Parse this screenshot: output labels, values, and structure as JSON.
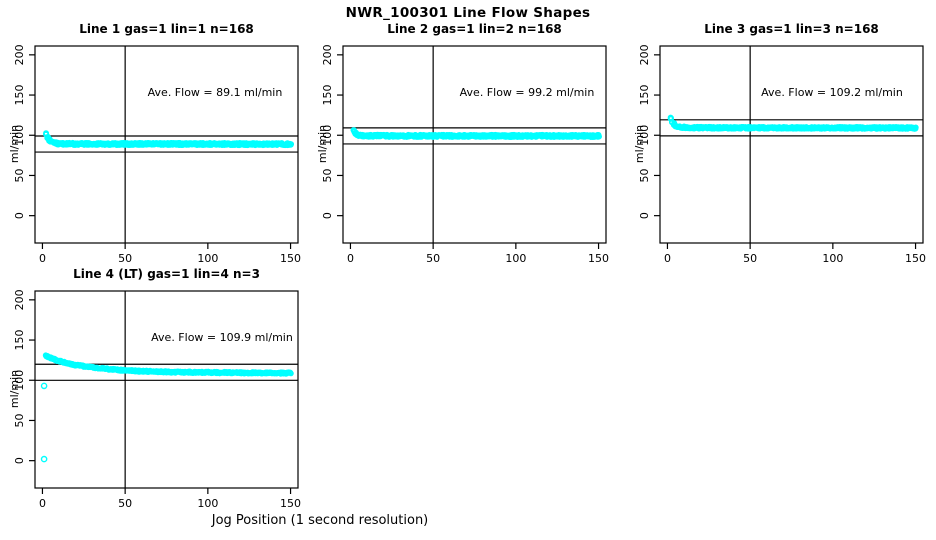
{
  "page": {
    "title": "NWR_100301  Line Flow Shapes",
    "x_axis_label": "Jog Position (1 second resolution)"
  },
  "colors": {
    "point": "#00ffff",
    "line": "#000000",
    "background": "#ffffff",
    "text": "#000000"
  },
  "chart_data": [
    {
      "type": "scatter",
      "title": "Line 1 gas=1 lin=1 n=168",
      "annotation": "Ave. Flow =  89.1  ml/min",
      "ave_flow_ml_min": 89.1,
      "n_jogs": 168,
      "ylabel": "ml/min",
      "x_ticks": [
        0,
        50,
        100,
        150
      ],
      "y_ticks": [
        0,
        50,
        100,
        150,
        200
      ],
      "x_range": [
        -4.5,
        154.5
      ],
      "y_range": [
        -34,
        211
      ],
      "ref_vline_x": 50,
      "ref_hlines": [
        99.1,
        79.1
      ],
      "x_span": [
        2,
        150
      ],
      "traces": 4,
      "band_halfwidth": 1.4,
      "series_profile": [
        [
          2,
          101.5
        ],
        [
          3,
          97.5
        ],
        [
          4,
          94.5
        ],
        [
          5,
          92.5
        ],
        [
          6,
          91.0
        ],
        [
          8,
          90.0
        ],
        [
          10,
          89.6
        ],
        [
          15,
          89.3
        ],
        [
          30,
          89.2
        ],
        [
          150,
          89.0
        ]
      ],
      "outliers": []
    },
    {
      "type": "scatter",
      "title": "Line 2 gas=1 lin=2 n=168",
      "annotation": "Ave. Flow =  99.2  ml/min",
      "ave_flow_ml_min": 99.2,
      "n_jogs": 168,
      "ylabel": "ml/min",
      "x_ticks": [
        0,
        50,
        100,
        150
      ],
      "y_ticks": [
        0,
        50,
        100,
        150,
        200
      ],
      "x_range": [
        -4.5,
        154.5
      ],
      "y_range": [
        -34,
        211
      ],
      "ref_vline_x": 50,
      "ref_hlines": [
        109.2,
        89.2
      ],
      "x_span": [
        2,
        150
      ],
      "traces": 4,
      "band_halfwidth": 1.4,
      "series_profile": [
        [
          2,
          105.0
        ],
        [
          3,
          102.5
        ],
        [
          4,
          101.0
        ],
        [
          5,
          100.3
        ],
        [
          6,
          99.9
        ],
        [
          8,
          99.6
        ],
        [
          10,
          99.4
        ],
        [
          15,
          99.3
        ],
        [
          30,
          99.2
        ],
        [
          150,
          99.1
        ]
      ],
      "outliers": []
    },
    {
      "type": "scatter",
      "title": "Line 3 gas=1 lin=3 n=168",
      "annotation": "Ave. Flow =  109.2  ml/min",
      "ave_flow_ml_min": 109.2,
      "n_jogs": 168,
      "ylabel": "ml/min",
      "x_ticks": [
        0,
        50,
        100,
        150
      ],
      "y_ticks": [
        0,
        50,
        100,
        150,
        200
      ],
      "x_range": [
        -4.5,
        154.5
      ],
      "y_range": [
        -34,
        211
      ],
      "ref_vline_x": 50,
      "ref_hlines": [
        119.2,
        99.2
      ],
      "x_span": [
        2,
        150
      ],
      "traces": 4,
      "band_halfwidth": 1.2,
      "series_profile": [
        [
          2,
          121.5
        ],
        [
          3,
          117.0
        ],
        [
          4,
          114.0
        ],
        [
          5,
          112.0
        ],
        [
          6,
          111.0
        ],
        [
          8,
          110.3
        ],
        [
          10,
          109.9
        ],
        [
          15,
          109.5
        ],
        [
          30,
          109.3
        ],
        [
          150,
          109.1
        ]
      ],
      "outliers": []
    },
    {
      "type": "scatter",
      "title": "Line 4 (LT) gas=1 lin=4 n=3",
      "annotation": "Ave. Flow =  109.9  ml/min",
      "ave_flow_ml_min": 109.9,
      "n_jogs": 3,
      "ylabel": "ml/min",
      "x_ticks": [
        0,
        50,
        100,
        150
      ],
      "y_ticks": [
        0,
        50,
        100,
        150,
        200
      ],
      "x_range": [
        -4.5,
        154.5
      ],
      "y_range": [
        -34,
        211
      ],
      "ref_vline_x": 50,
      "ref_hlines": [
        119.9,
        99.9
      ],
      "x_span": [
        2,
        150
      ],
      "traces": 3,
      "band_halfwidth": 1.0,
      "series_profile": [
        [
          2,
          130.5
        ],
        [
          4,
          128.5
        ],
        [
          6,
          127.0
        ],
        [
          10,
          124.0
        ],
        [
          15,
          121.0
        ],
        [
          20,
          119.0
        ],
        [
          25,
          117.3
        ],
        [
          30,
          116.0
        ],
        [
          40,
          113.8
        ],
        [
          50,
          112.3
        ],
        [
          60,
          111.3
        ],
        [
          70,
          110.7
        ],
        [
          80,
          110.2
        ],
        [
          100,
          109.7
        ],
        [
          120,
          109.3
        ],
        [
          150,
          109.0
        ]
      ],
      "outliers": [
        [
          1,
          93
        ],
        [
          1,
          2
        ]
      ]
    }
  ]
}
